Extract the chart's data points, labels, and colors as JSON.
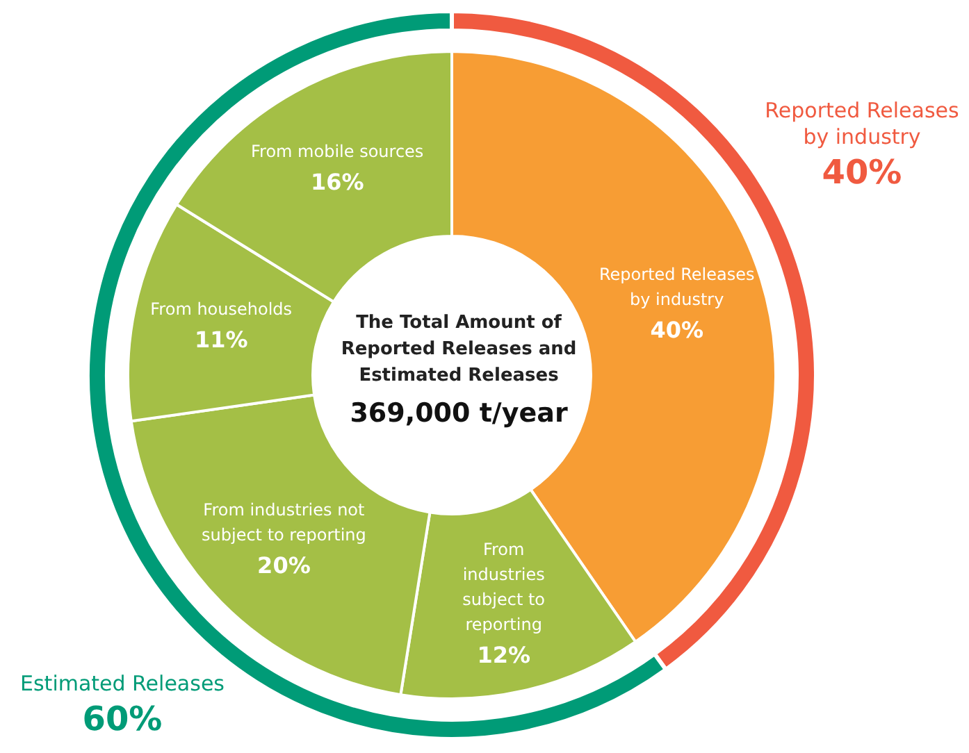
{
  "chart_data": [
    {
      "type": "donut",
      "categories": [
        "Reported Releases by industry",
        "Estimated Releases"
      ],
      "values": [
        40,
        60
      ],
      "colors": [
        "#f05a40",
        "#009b77"
      ],
      "value_labels": [
        "40%",
        "60%"
      ]
    },
    {
      "type": "donut",
      "title": "The Total Amount of Reported Releases and Estimated Releases",
      "subtitle": "369,000 t/year",
      "categories": [
        "Reported Releases by industry",
        "From industries subject to reporting",
        "From industries not subject to reporting",
        "From households",
        "From mobile sources"
      ],
      "values": [
        40,
        12,
        20,
        11,
        16
      ],
      "colors": [
        "#f79d34",
        "#a4bf46",
        "#a4bf46",
        "#a4bf46",
        "#a4bf46"
      ],
      "value_labels": [
        "40%",
        "12%",
        "20%",
        "11%",
        "16%"
      ]
    }
  ]
}
